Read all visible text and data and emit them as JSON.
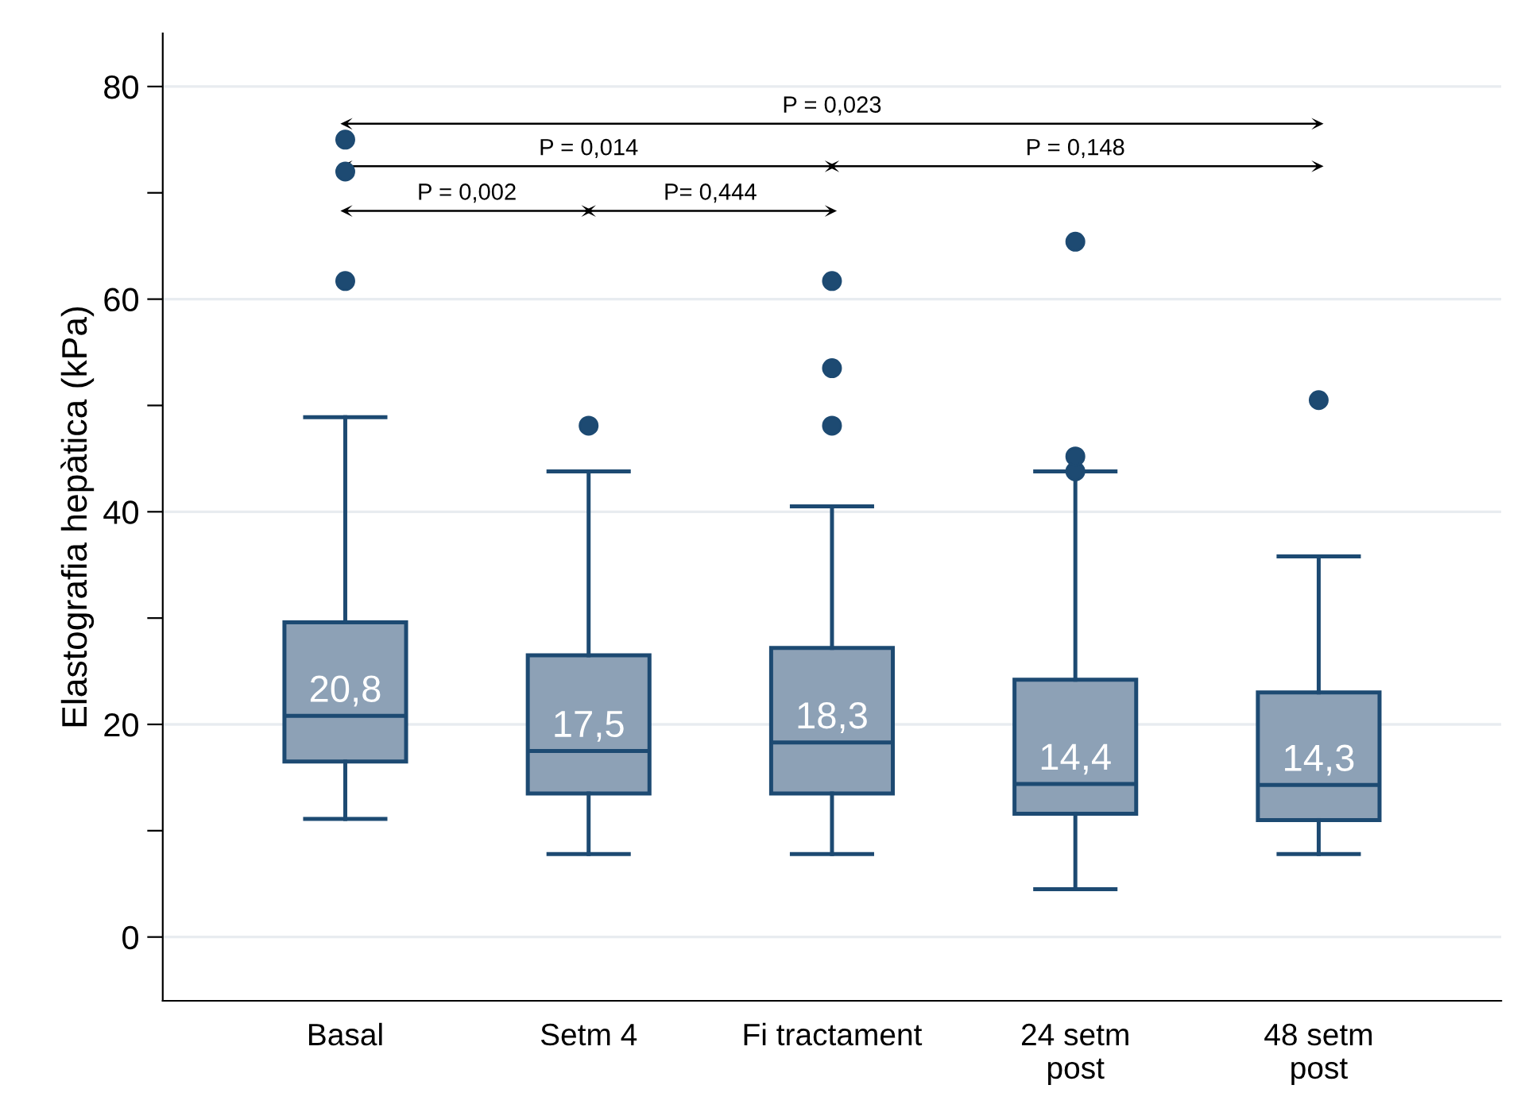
{
  "chart_data": {
    "type": "box",
    "ylabel": "Elastografia hepàtica (kPa)",
    "categories": [
      "Basal",
      "Setm 4",
      "Fi tractament",
      "24 setm\npost",
      "48 setm\npost"
    ],
    "boxes": [
      {
        "low": 11.1,
        "q1": 16.5,
        "median": 20.8,
        "q3": 29.6,
        "high": 48.9,
        "outliers": [
          61.7,
          72,
          75
        ]
      },
      {
        "low": 7.8,
        "q1": 13.5,
        "median": 17.5,
        "q3": 26.5,
        "high": 43.8,
        "outliers": [
          48.1
        ]
      },
      {
        "low": 7.8,
        "q1": 13.5,
        "median": 18.3,
        "q3": 27.2,
        "high": 40.5,
        "outliers": [
          48.1,
          53.5,
          61.7
        ]
      },
      {
        "low": 4.5,
        "q1": 11.6,
        "median": 14.4,
        "q3": 24.2,
        "high": 43.8,
        "outliers": [
          43.8,
          45.2,
          65.4
        ]
      },
      {
        "low": 7.8,
        "q1": 11.0,
        "median": 14.3,
        "q3": 23.0,
        "high": 35.8,
        "outliers": [
          50.5
        ]
      }
    ],
    "value_labels": [
      "20,8",
      "17,5",
      "18,3",
      "14,4",
      "14,3"
    ],
    "color": "#8da1b6",
    "ylim": [
      -6,
      85
    ],
    "yticks": [
      0,
      {
        "value": 10,
        "label": null
      },
      20,
      {
        "value": 30,
        "label": null
      },
      40,
      {
        "value": 50,
        "label": null
      },
      60,
      {
        "value": 70,
        "label": null
      },
      80
    ],
    "grid": "y",
    "annotations": [
      "P = 0,023",
      "P = 0,014",
      "P = 0,148",
      "P = 0,002",
      "P= 0,444"
    ]
  }
}
